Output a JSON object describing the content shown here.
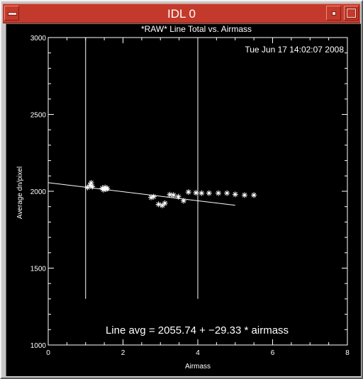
{
  "window": {
    "title": "IDL 0"
  },
  "chart_data": {
    "type": "scatter",
    "title": "*RAW* Line Total vs. Airmass",
    "timestamp": "Tue Jun 17 14:02:07 2008",
    "xlabel": "Airmass",
    "ylabel": "Average dn/pixel",
    "xlim": [
      0,
      8
    ],
    "ylim": [
      1000,
      3000
    ],
    "xticks": [
      0,
      2,
      4,
      6,
      8
    ],
    "yticks": [
      1000,
      1500,
      2000,
      2500,
      3000
    ],
    "x_tick_labels": [
      "0",
      "2",
      "4",
      "6",
      "8"
    ],
    "y_tick_labels": [
      "1000",
      "1500",
      "2000",
      "2500",
      "3000"
    ],
    "grid": false,
    "marker": "asterisk",
    "vertical_lines": [
      1.0,
      4.0
    ],
    "vertical_line_range": [
      1300,
      3000
    ],
    "points": [
      {
        "x": 1.05,
        "y": 2025
      },
      {
        "x": 1.12,
        "y": 2040
      },
      {
        "x": 1.15,
        "y": 2055
      },
      {
        "x": 1.18,
        "y": 2030
      },
      {
        "x": 1.45,
        "y": 2020
      },
      {
        "x": 1.48,
        "y": 2010
      },
      {
        "x": 1.52,
        "y": 2025
      },
      {
        "x": 1.55,
        "y": 2015
      },
      {
        "x": 1.58,
        "y": 2018
      },
      {
        "x": 2.75,
        "y": 1960
      },
      {
        "x": 2.82,
        "y": 1965
      },
      {
        "x": 2.95,
        "y": 1915
      },
      {
        "x": 3.05,
        "y": 1908
      },
      {
        "x": 3.12,
        "y": 1922
      },
      {
        "x": 3.25,
        "y": 1978
      },
      {
        "x": 3.35,
        "y": 1975
      },
      {
        "x": 3.48,
        "y": 1965
      },
      {
        "x": 3.62,
        "y": 1938
      },
      {
        "x": 3.75,
        "y": 1995
      },
      {
        "x": 3.95,
        "y": 1990
      },
      {
        "x": 4.1,
        "y": 1988
      },
      {
        "x": 4.3,
        "y": 1988
      },
      {
        "x": 4.55,
        "y": 1988
      },
      {
        "x": 4.78,
        "y": 1988
      },
      {
        "x": 5.0,
        "y": 1980
      },
      {
        "x": 5.25,
        "y": 1975
      },
      {
        "x": 5.5,
        "y": 1975
      }
    ],
    "fit": {
      "intercept": 2055.74,
      "slope": -29.33,
      "x_range": [
        0,
        5
      ],
      "label": "Line avg = 2055.74 + −29.33 * airmass"
    }
  },
  "colors": {
    "title_bar": "#c33a2c",
    "plot_background": "#000000",
    "plot_foreground": "#ffffff",
    "window_frame": "#c6c6c6"
  },
  "icons": [
    "window-menu-icon",
    "minimize-icon",
    "maximize-icon"
  ]
}
